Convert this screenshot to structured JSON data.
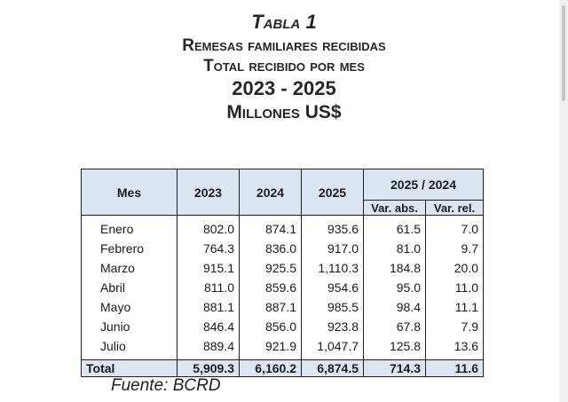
{
  "titles": {
    "tabla": "Tabla 1",
    "line1": "Remesas familiares recibidas",
    "line2": "Total recibido por mes",
    "years": "2023 - 2025",
    "units": "Millones US$"
  },
  "table": {
    "headers": {
      "mes": "Mes",
      "y2023": "2023",
      "y2024": "2024",
      "y2025": "2025",
      "comparison": "2025 / 2024",
      "var_abs": "Var. abs.",
      "var_rel": "Var. rel."
    },
    "rows": [
      {
        "mes": "Enero",
        "y2023": "802.0",
        "y2024": "874.1",
        "y2025": "935.6",
        "var_abs": "61.5",
        "var_rel": "7.0"
      },
      {
        "mes": "Febrero",
        "y2023": "764.3",
        "y2024": "836.0",
        "y2025": "917.0",
        "var_abs": "81.0",
        "var_rel": "9.7"
      },
      {
        "mes": "Marzo",
        "y2023": "915.1",
        "y2024": "925.5",
        "y2025": "1,110.3",
        "var_abs": "184.8",
        "var_rel": "20.0"
      },
      {
        "mes": "Abril",
        "y2023": "811.0",
        "y2024": "859.6",
        "y2025": "954.6",
        "var_abs": "95.0",
        "var_rel": "11.0"
      },
      {
        "mes": "Mayo",
        "y2023": "881.1",
        "y2024": "887.1",
        "y2025": "985.5",
        "var_abs": "98.4",
        "var_rel": "11.1"
      },
      {
        "mes": "Junio",
        "y2023": "846.4",
        "y2024": "856.0",
        "y2025": "923.8",
        "var_abs": "67.8",
        "var_rel": "7.9"
      },
      {
        "mes": "Julio",
        "y2023": "889.4",
        "y2024": "921.9",
        "y2025": "1,047.7",
        "var_abs": "125.8",
        "var_rel": "13.6"
      }
    ],
    "total": {
      "mes": "Total",
      "y2023": "5,909.3",
      "y2024": "6,160.2",
      "y2025": "6,874.5",
      "var_abs": "714.3",
      "var_rel": "11.6"
    }
  },
  "source": "Fuente: BCRD",
  "colors": {
    "header_fill": "#dbe6f2",
    "border": "#1f1f1f",
    "text": "#1f1f1f"
  }
}
